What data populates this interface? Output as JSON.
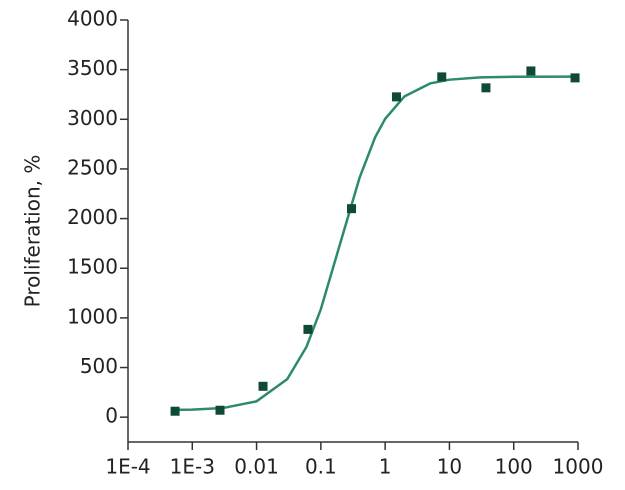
{
  "chart_data": {
    "type": "scatter",
    "y_label": "Proliferation, %",
    "xlog": true,
    "xlim": [
      0.0001,
      1000
    ],
    "xticks": [
      {
        "value": 0.0001,
        "label": "1E-4"
      },
      {
        "value": 0.001,
        "label": "1E-3"
      },
      0.01,
      0.1,
      1,
      10,
      100,
      1000
    ],
    "ylim": [
      -250,
      4000
    ],
    "yticks": [
      0,
      500,
      1000,
      1500,
      2000,
      2500,
      3000,
      3500,
      4000
    ],
    "series": [
      {
        "mode": "markers",
        "color": "#0f4a36",
        "x": [
          0.00054,
          0.0027,
          0.0126,
          0.063,
          0.3,
          1.5,
          7.6,
          37,
          185,
          900
        ],
        "values": [
          60,
          70,
          311,
          884,
          2100,
          3226,
          3427,
          3317,
          3487,
          3417
        ]
      },
      {
        "mode": "line",
        "color": "#2e8a6c",
        "x": [
          0.0005,
          0.001,
          0.003,
          0.01,
          0.03,
          0.06,
          0.1,
          0.2,
          0.4,
          0.7,
          1,
          2,
          5,
          10,
          30,
          100,
          1000
        ],
        "values": [
          73,
          76,
          92,
          160,
          383,
          711,
          1088,
          1750,
          2411,
          2820,
          3004,
          3231,
          3361,
          3399,
          3422,
          3428,
          3430
        ]
      }
    ]
  }
}
